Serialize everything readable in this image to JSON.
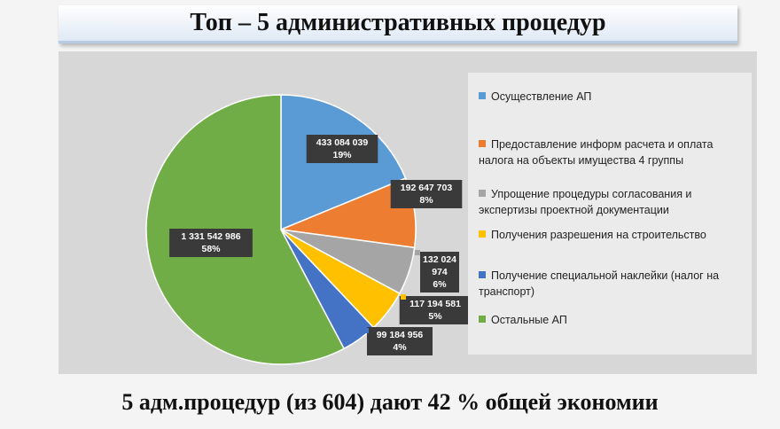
{
  "title": "Топ – 5 административных процедур",
  "footer": "5 адм.процедур (из 604) дают 42 % общей экономии",
  "chart_data": {
    "type": "pie",
    "categories": [
      "Осуществление АП",
      "Предоставление информ расчета и оплата налога на объекты имущества 4 группы",
      "Упрощение процедуры согласования и экспертизы проектной документации",
      "Получения разрешения на строительство",
      "Получение специальной наклейки (налог на транспорт)",
      "Остальные АП"
    ],
    "values": [
      433084039,
      192647703,
      132024974,
      117194581,
      99184956,
      1331542986
    ],
    "value_labels": [
      "433 084 039",
      "192 647 703",
      "132 024 974",
      "117 194 581",
      "99 184 956",
      "1 331 542 986"
    ],
    "percent_labels": [
      "19%",
      "8%",
      "6%",
      "5%",
      "4%",
      "58%"
    ],
    "colors": [
      "#5b9bd5",
      "#ed7d31",
      "#a5a5a5",
      "#ffc000",
      "#4472c4",
      "#70ad47"
    ],
    "legend_position": "right"
  }
}
